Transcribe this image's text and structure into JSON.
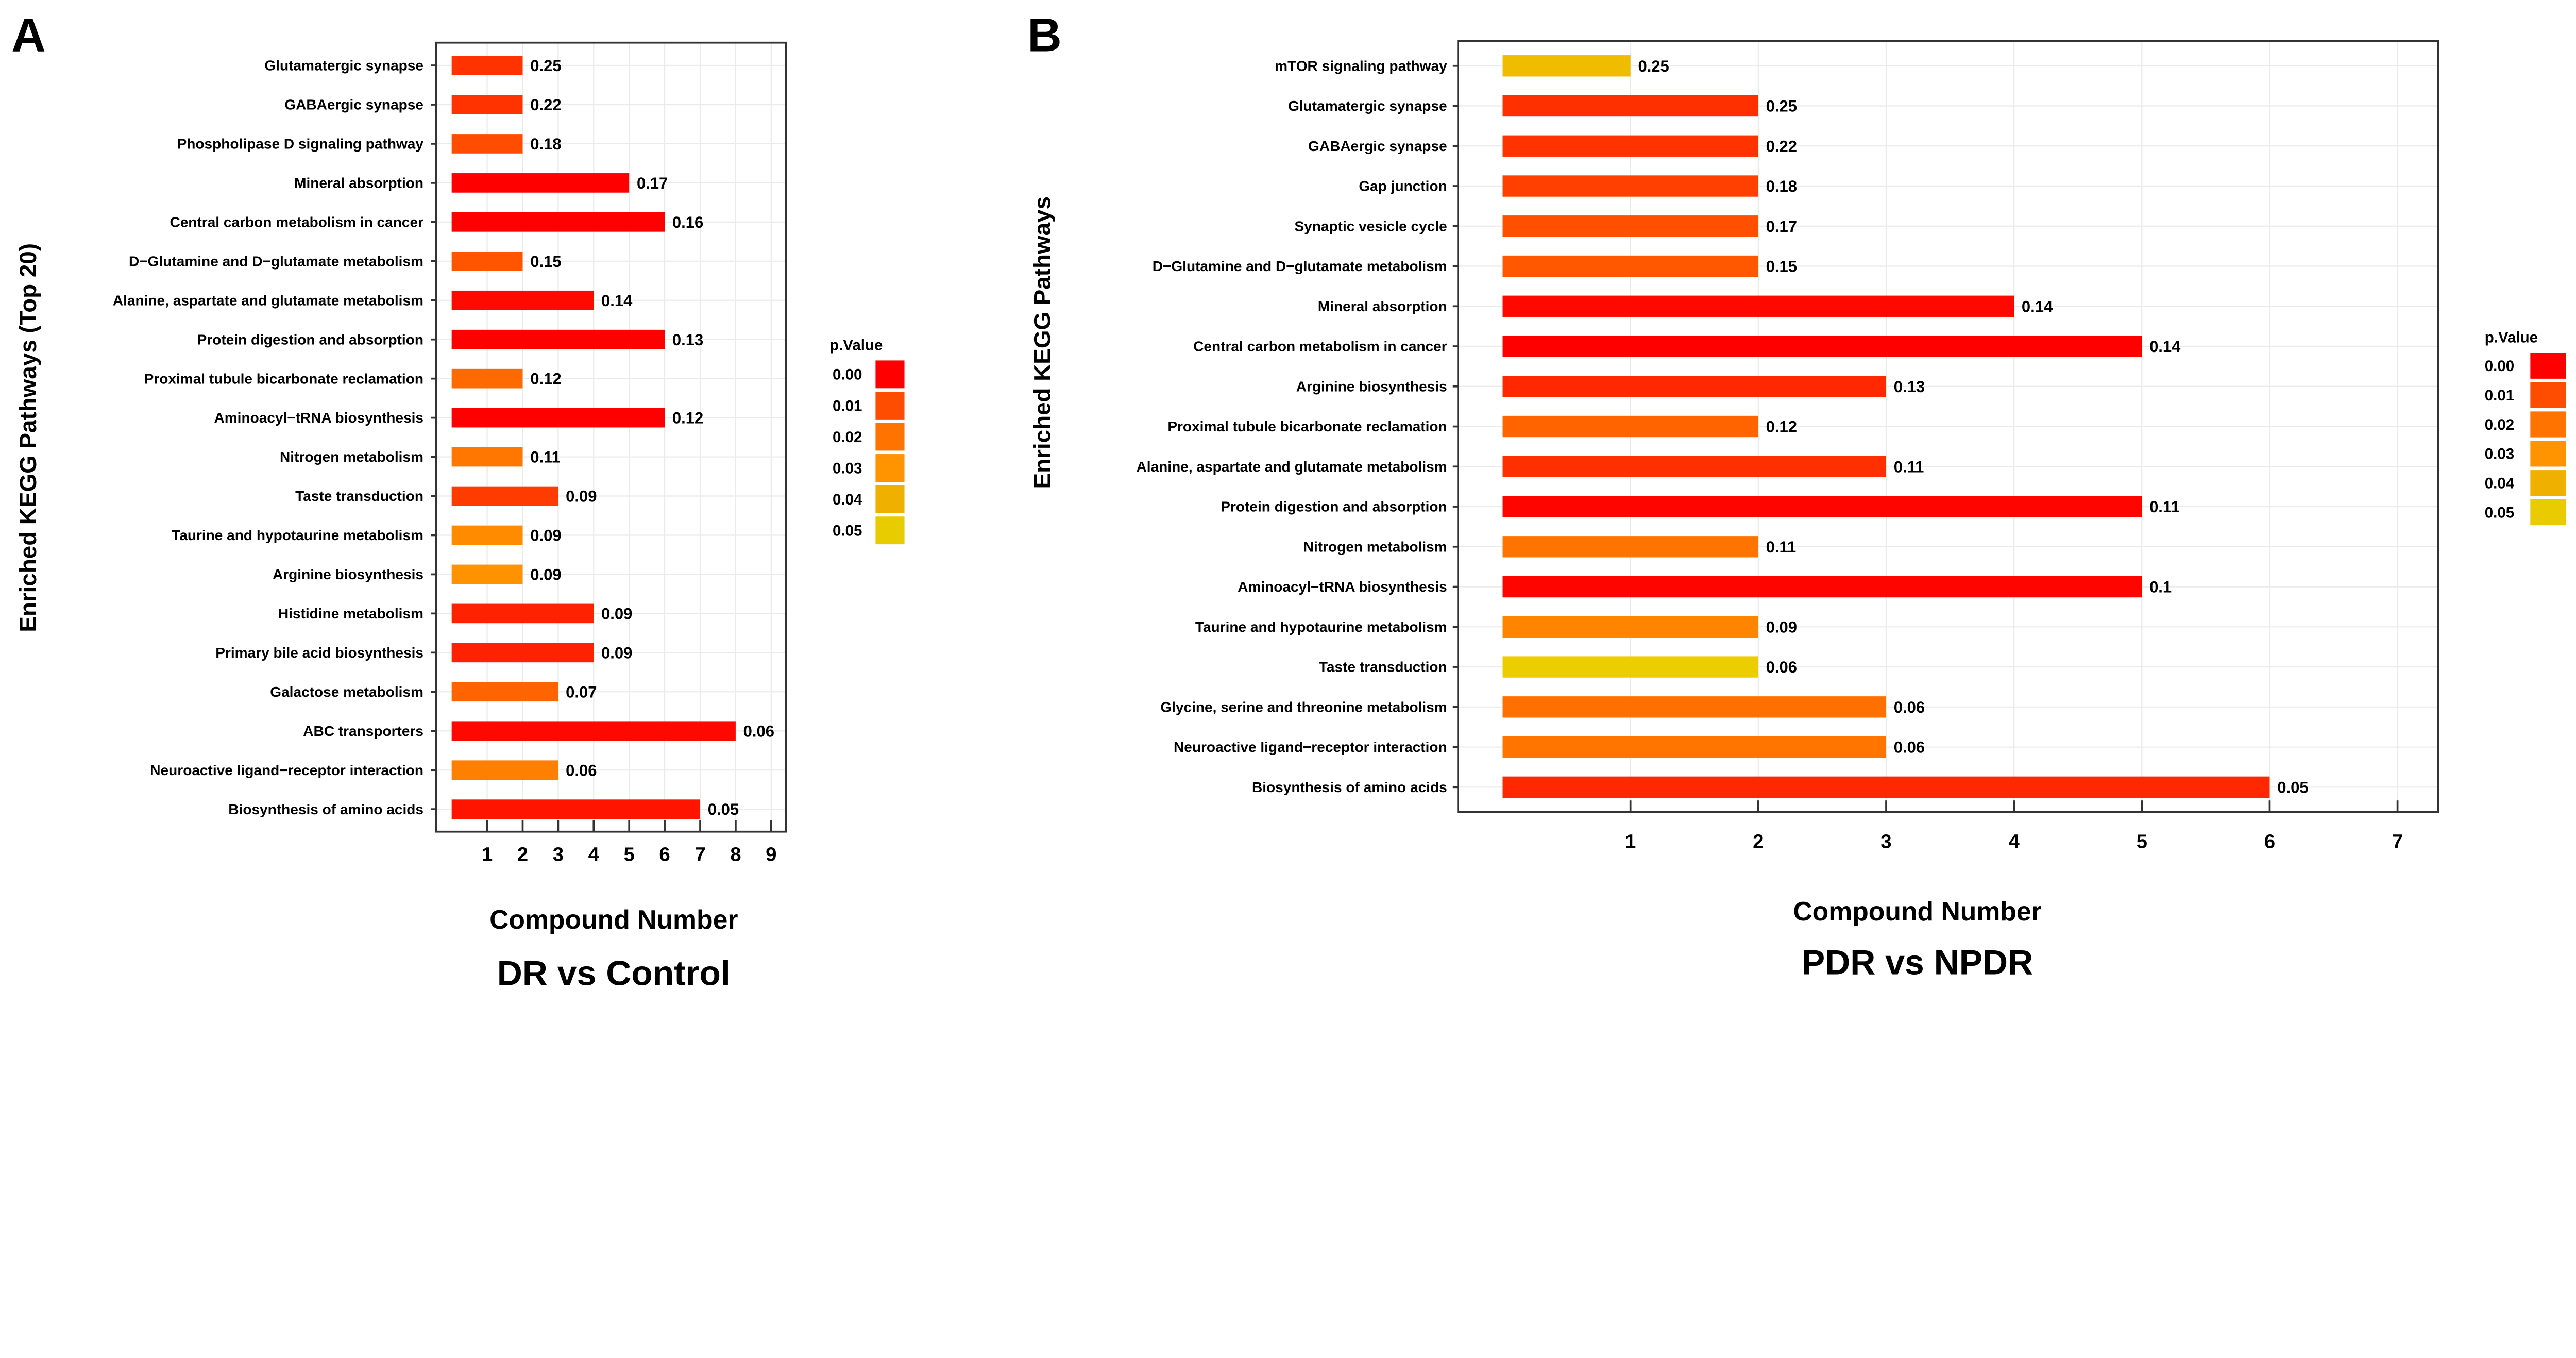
{
  "chart_data": [
    {
      "type": "bar",
      "orientation": "horizontal",
      "panel_label": "A",
      "title": "DR vs Control",
      "xlabel": "Compound Number",
      "ylabel": "Enriched KEGG Pathways (Top 20)",
      "xticks": [
        1,
        2,
        3,
        4,
        5,
        6,
        7,
        8,
        9
      ],
      "xlim": [
        0,
        9.4
      ],
      "grid": true,
      "legend": {
        "title": "p.Value",
        "position": "right",
        "entries": [
          {
            "label": "0.00",
            "color": "#ff0000"
          },
          {
            "label": "0.01",
            "color": "#ff4d00"
          },
          {
            "label": "0.02",
            "color": "#ff7400"
          },
          {
            "label": "0.03",
            "color": "#ff9300"
          },
          {
            "label": "0.04",
            "color": "#f0b000"
          },
          {
            "label": "0.05",
            "color": "#e8cc00"
          }
        ]
      },
      "categories": [
        "Glutamatergic synapse",
        "GABAergic synapse",
        "Phospholipase D signaling pathway",
        "Mineral absorption",
        "Central carbon metabolism in cancer",
        "D−Glutamine and D−glutamate metabolism",
        "Alanine, aspartate and glutamate metabolism",
        "Protein digestion and absorption",
        "Proximal tubule bicarbonate reclamation",
        "Aminoacyl−tRNA biosynthesis",
        "Nitrogen metabolism",
        "Taste transduction",
        "Taurine and hypotaurine metabolism",
        "Arginine biosynthesis",
        "Histidine metabolism",
        "Primary bile acid biosynthesis",
        "Galactose metabolism",
        "ABC transporters",
        "Neuroactive ligand−receptor interaction",
        "Biosynthesis of amino acids"
      ],
      "values": [
        2,
        2,
        2,
        5,
        6,
        2,
        4,
        6,
        2,
        6,
        2,
        3,
        2,
        2,
        4,
        4,
        3,
        8,
        3,
        7
      ],
      "data_labels": [
        "0.25",
        "0.22",
        "0.18",
        "0.17",
        "0.16",
        "0.15",
        "0.14",
        "0.13",
        "0.12",
        "0.12",
        "0.11",
        "0.09",
        "0.09",
        "0.09",
        "0.09",
        "0.09",
        "0.07",
        "0.06",
        "0.06",
        "0.05"
      ],
      "colors": [
        "#ff3300",
        "#ff3300",
        "#ff4d00",
        "#ff0000",
        "#ff0000",
        "#ff5500",
        "#ff0a00",
        "#ff0000",
        "#ff6a00",
        "#ff0000",
        "#ff7700",
        "#ff3c00",
        "#ff8c00",
        "#ff9200",
        "#ff2200",
        "#ff2200",
        "#ff6400",
        "#ff0800",
        "#ff7f00",
        "#ff1400"
      ]
    },
    {
      "type": "bar",
      "orientation": "horizontal",
      "panel_label": "B",
      "title": "PDR vs NPDR",
      "xlabel": "Compound Number",
      "ylabel": "Enriched KEGG Pathways",
      "xticks": [
        1,
        2,
        3,
        4,
        5,
        6,
        7
      ],
      "xlim": [
        0,
        7.3
      ],
      "grid": true,
      "legend": {
        "title": "p.Value",
        "position": "right",
        "entries": [
          {
            "label": "0.00",
            "color": "#ff0000"
          },
          {
            "label": "0.01",
            "color": "#ff4d00"
          },
          {
            "label": "0.02",
            "color": "#ff7400"
          },
          {
            "label": "0.03",
            "color": "#ff9300"
          },
          {
            "label": "0.04",
            "color": "#f0b000"
          },
          {
            "label": "0.05",
            "color": "#e8cc00"
          }
        ]
      },
      "categories": [
        "mTOR signaling pathway",
        "Glutamatergic synapse",
        "GABAergic synapse",
        "Gap junction",
        "Synaptic vesicle cycle",
        "D−Glutamine and D−glutamate metabolism",
        "Mineral absorption",
        "Central carbon metabolism in cancer",
        "Arginine biosynthesis",
        "Proximal tubule bicarbonate reclamation",
        "Alanine, aspartate and glutamate metabolism",
        "Protein digestion and absorption",
        "Nitrogen metabolism",
        "Aminoacyl−tRNA biosynthesis",
        "Taurine and hypotaurine metabolism",
        "Taste transduction",
        "Glycine, serine and threonine metabolism",
        "Neuroactive ligand−receptor interaction",
        "Biosynthesis of amino acids"
      ],
      "values": [
        1,
        2,
        2,
        2,
        2,
        2,
        4,
        5,
        3,
        2,
        3,
        5,
        2,
        5,
        2,
        2,
        3,
        3,
        6
      ],
      "data_labels": [
        "0.25",
        "0.25",
        "0.22",
        "0.18",
        "0.17",
        "0.15",
        "0.14",
        "0.14",
        "0.13",
        "0.12",
        "0.11",
        "0.11",
        "0.11",
        "0.1",
        "0.09",
        "0.06",
        "0.06",
        "0.06",
        "0.05"
      ],
      "colors": [
        "#f0bc00",
        "#ff3000",
        "#ff3300",
        "#ff4000",
        "#ff5000",
        "#ff5800",
        "#ff0800",
        "#ff0000",
        "#ff2800",
        "#ff6400",
        "#ff3000",
        "#ff0500",
        "#ff7300",
        "#ff0500",
        "#ff8500",
        "#ecce00",
        "#ff7000",
        "#ff7500",
        "#ff2800"
      ]
    }
  ]
}
